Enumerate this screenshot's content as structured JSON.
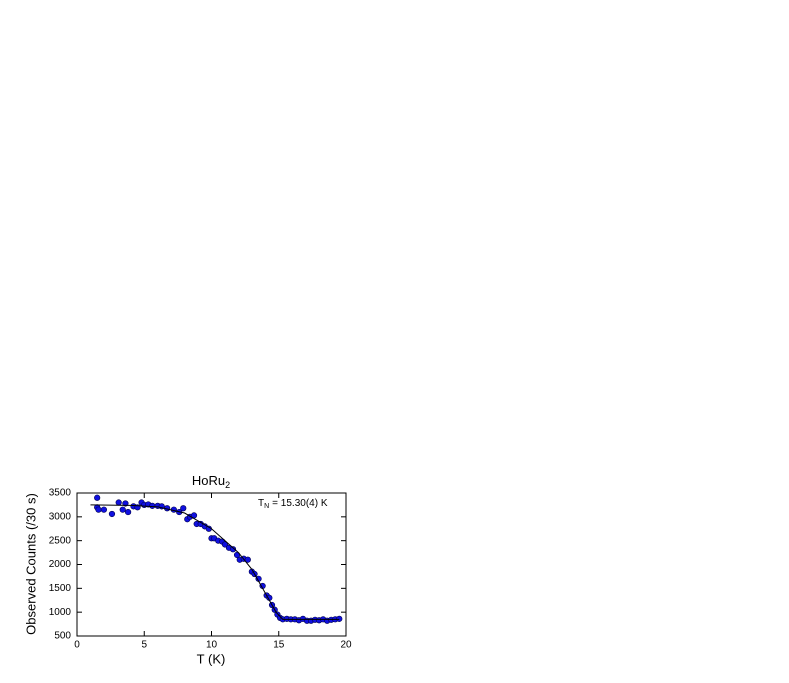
{
  "chart_data": {
    "type": "scatter",
    "title": "HoRu",
    "title_subscript": "2",
    "annotation": {
      "text": "T",
      "subscript": "N",
      "rest": "= 15.30(4) K"
    },
    "x_label": "T (K)",
    "y_label": "Observed Counts (/30 s)",
    "xlim": [
      0,
      20
    ],
    "ylim": [
      500,
      3500
    ],
    "xticks": [
      0,
      5,
      10,
      15,
      20
    ],
    "yticks": [
      500,
      1000,
      1500,
      2000,
      2500,
      3000,
      3500
    ],
    "series": [
      {
        "style": "markers",
        "color": "#1010e0",
        "x": [
          1.5,
          1.5,
          1.6,
          2.0,
          2.6,
          3.1,
          3.4,
          3.6,
          3.8,
          4.2,
          4.5,
          4.8,
          5.0,
          5.3,
          5.6,
          6.0,
          6.3,
          6.7,
          7.2,
          7.6,
          7.9,
          8.2,
          8.4,
          8.7,
          8.9,
          9.2,
          9.5,
          9.8,
          10.0,
          10.2,
          10.5,
          10.8,
          11.0,
          11.3,
          11.6,
          11.9,
          12.1,
          12.4,
          12.7,
          13.0,
          13.2,
          13.5,
          13.8,
          14.1,
          14.3,
          14.5,
          14.7,
          14.9,
          15.1,
          15.3,
          15.6,
          15.9,
          16.2,
          16.5,
          16.8,
          17.1,
          17.4,
          17.7,
          18.0,
          18.3,
          18.6,
          18.9,
          19.2,
          19.5
        ],
        "values": [
          3400,
          3200,
          3150,
          3150,
          3060,
          3300,
          3150,
          3280,
          3100,
          3220,
          3200,
          3300,
          3250,
          3260,
          3230,
          3230,
          3220,
          3180,
          3150,
          3100,
          3180,
          2950,
          3000,
          3030,
          2850,
          2850,
          2800,
          2750,
          2550,
          2550,
          2500,
          2480,
          2420,
          2350,
          2320,
          2200,
          2100,
          2120,
          2100,
          1850,
          1800,
          1700,
          1550,
          1350,
          1300,
          1150,
          1050,
          950,
          880,
          850,
          860,
          850,
          850,
          830,
          860,
          820,
          820,
          840,
          830,
          850,
          820,
          840,
          850,
          860
        ]
      },
      {
        "style": "line",
        "color": "#000000",
        "x": [
          1.0,
          4.0,
          6.0,
          8.0,
          10.0,
          12.0,
          13.0,
          14.0,
          14.8,
          15.3,
          19.5
        ],
        "values": [
          3250,
          3240,
          3210,
          3080,
          2750,
          2250,
          1900,
          1400,
          1000,
          850,
          850
        ]
      }
    ]
  }
}
